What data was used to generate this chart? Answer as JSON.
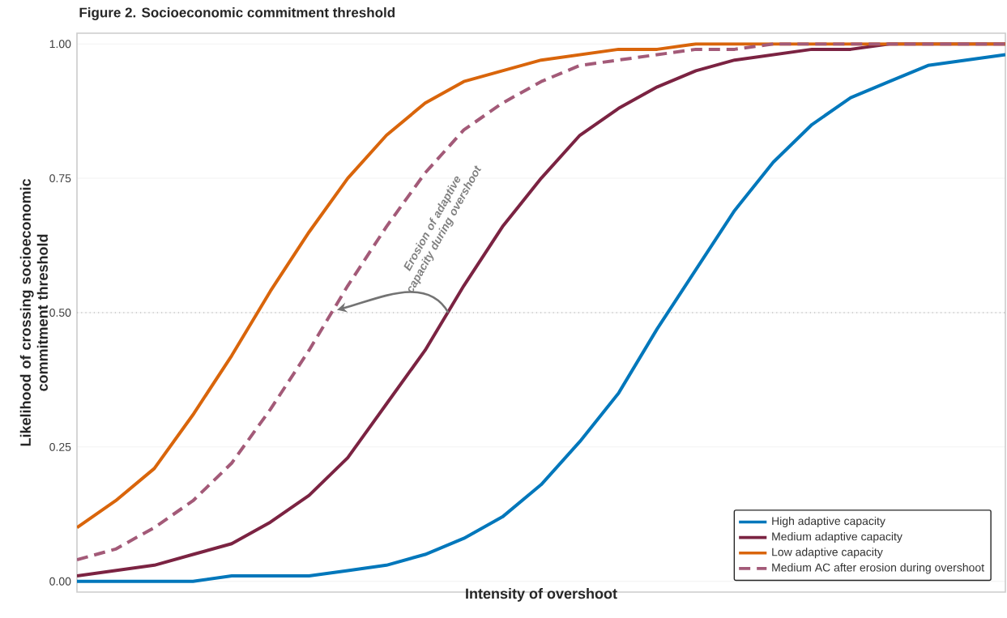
{
  "chart_data": {
    "type": "line",
    "title": "Figure 2. Socioeconomic commitment threshold",
    "xlabel": "Intensity of overshoot",
    "ylabel": "Likelihood of crossing socioeconomic commitment threshold",
    "categories": [
      null,
      null,
      null,
      null,
      null,
      null,
      null,
      null,
      null,
      null,
      null,
      null,
      null,
      null,
      null,
      null,
      null,
      null,
      null,
      null,
      null,
      null,
      null,
      null,
      null
    ],
    "series": [
      {
        "name": "High adaptive capacity",
        "color": "#0077bb",
        "values": [
          0.0,
          0.0,
          0.0,
          0.0,
          0.01,
          0.01,
          0.01,
          0.02,
          0.03,
          0.05,
          0.08,
          0.12,
          0.18,
          0.26,
          0.35,
          0.47,
          0.58,
          0.69,
          0.78,
          0.85,
          0.9,
          0.93,
          0.96,
          0.97,
          0.98
        ]
      },
      {
        "name": "Medium adaptive capacity",
        "color": "#7b2342",
        "values": [
          0.01,
          0.02,
          0.03,
          0.05,
          0.07,
          0.11,
          0.16,
          0.23,
          0.33,
          0.43,
          0.55,
          0.66,
          0.75,
          0.83,
          0.88,
          0.92,
          0.95,
          0.97,
          0.98,
          0.99,
          0.99,
          1.0,
          1.0,
          1.0,
          1.0
        ]
      },
      {
        "name": "Low adaptive capacity",
        "color": "#d9650b",
        "values": [
          0.1,
          0.15,
          0.21,
          0.31,
          0.42,
          0.54,
          0.65,
          0.75,
          0.83,
          0.89,
          0.93,
          0.95,
          0.97,
          0.98,
          0.99,
          0.99,
          1.0,
          1.0,
          1.0,
          1.0,
          1.0,
          1.0,
          1.0,
          1.0,
          1.0
        ]
      },
      {
        "name": "Medium AC after erosion during overshoot",
        "color": "#a35a78",
        "line_style": "dashed",
        "values": [
          0.04,
          0.06,
          0.1,
          0.15,
          0.22,
          0.32,
          0.43,
          0.55,
          0.66,
          0.76,
          0.84,
          0.89,
          0.93,
          0.96,
          0.97,
          0.98,
          0.99,
          0.99,
          1.0,
          1.0,
          1.0,
          1.0,
          1.0,
          1.0,
          1.0
        ]
      }
    ],
    "ylim": [
      -0.02,
      1.02
    ],
    "yticks": [
      {
        "value": 0,
        "label": "0.00"
      },
      {
        "value": 0.25,
        "label": "0.25"
      },
      {
        "value": 0.5,
        "label": "0.50"
      },
      {
        "value": 0.75,
        "label": "0.75"
      },
      {
        "value": 1,
        "label": "1.00"
      }
    ],
    "ref_lines": [
      {
        "axis": "y",
        "value": 0.5,
        "color": "#aaaaaa",
        "line_style": "dotted"
      }
    ],
    "annotations": [
      "Erosion of adaptive capacity during overshoot"
    ],
    "grid": "y",
    "legend": "bottom right",
    "tick_labels": "y",
    "line_style": "solid",
    "marker": "none"
  }
}
